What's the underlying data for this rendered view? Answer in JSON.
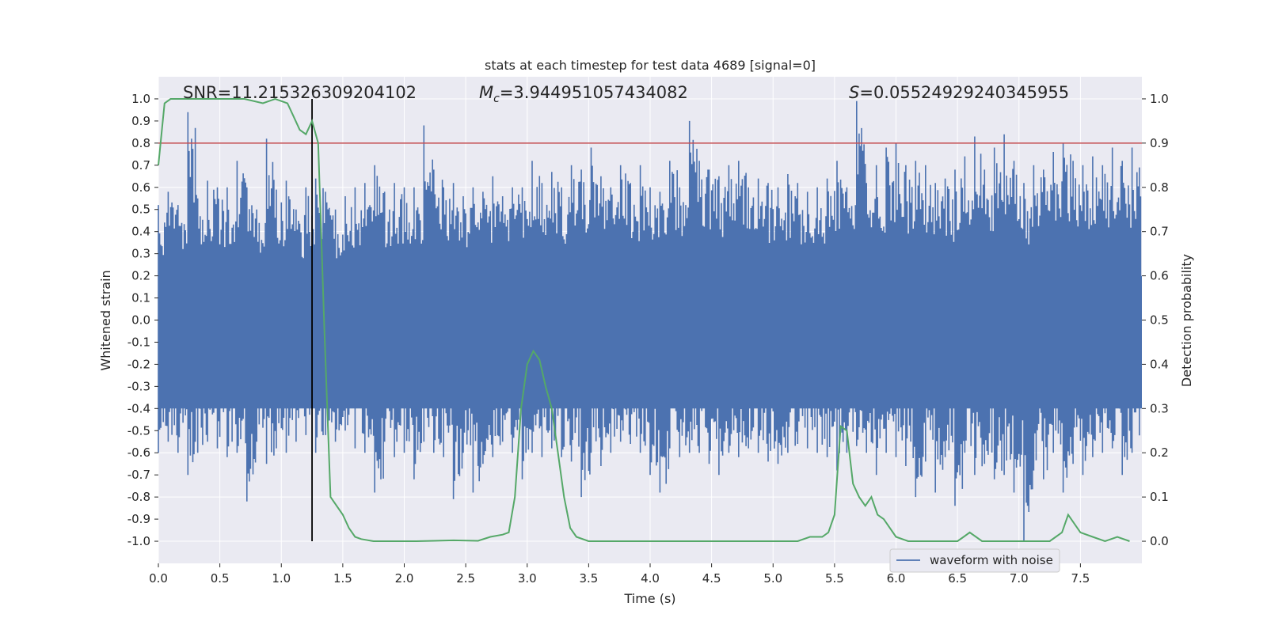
{
  "chart_data": {
    "type": "line",
    "title": "stats at each timestep for test data 4689 [signal=0]",
    "xlabel": "Time (s)",
    "ylabel": "Whitened strain",
    "y2label": "Detection probability",
    "xlim": [
      0.0,
      8.0
    ],
    "ylim": [
      -1.1,
      1.1
    ],
    "y2lim": [
      -0.05,
      1.05
    ],
    "x_ticks": [
      "0.0",
      "0.5",
      "1.0",
      "1.5",
      "2.0",
      "2.5",
      "3.0",
      "3.5",
      "4.0",
      "4.5",
      "5.0",
      "5.5",
      "6.0",
      "6.5",
      "7.0",
      "7.5"
    ],
    "y_ticks": [
      "1.0",
      "0.9",
      "0.8",
      "0.7",
      "0.6",
      "0.5",
      "0.4",
      "0.3",
      "0.2",
      "0.1",
      "0.0",
      "-0.1",
      "-0.2",
      "-0.3",
      "-0.4",
      "-0.5",
      "-0.6",
      "-0.7",
      "-0.8",
      "-0.9",
      "-1.0"
    ],
    "y2_ticks": [
      "1.0",
      "0.9",
      "0.8",
      "0.7",
      "0.6",
      "0.5",
      "0.4",
      "0.3",
      "0.2",
      "0.1",
      "0.0"
    ],
    "grid": true,
    "legend_position": "lower-right",
    "annotations": {
      "snr_label": "SNR=11.215326309204102",
      "mc_prefix": "M",
      "mc_sub": "c",
      "mc_value": "=3.944951057434082",
      "s_prefix": "S",
      "s_value": "=0.05524929240345955"
    },
    "threshold": 0.9,
    "marker_x": 1.25,
    "series": [
      {
        "name": "waveform with noise",
        "color": "#4c72b0",
        "envelope_hi": [
          0.52,
          0.58,
          0.52,
          0.94,
          0.55,
          0.63,
          0.6,
          0.6,
          0.72,
          0.6,
          0.5,
          0.82,
          0.59,
          0.63,
          0.5,
          0.6,
          0.64,
          0.58,
          0.5,
          0.56,
          0.6,
          0.62,
          0.7,
          0.58,
          0.62,
          0.6,
          0.6,
          0.88,
          0.68,
          0.6,
          0.62,
          0.56,
          0.6,
          0.58,
          0.65,
          0.56,
          0.6,
          0.6,
          0.72,
          0.62,
          0.67,
          0.6,
          0.7,
          0.68,
          0.78,
          0.65,
          0.6,
          0.7,
          0.62,
          0.7,
          0.6,
          0.58,
          0.72,
          0.6,
          0.9,
          0.72,
          0.68,
          0.65,
          0.7,
          0.72,
          0.6,
          0.64,
          0.62,
          0.6,
          0.66,
          0.62,
          0.58,
          0.6,
          0.64,
          0.72,
          0.6,
          0.99,
          0.62,
          0.7,
          0.78,
          0.8,
          0.7,
          0.72,
          0.7,
          0.62,
          0.64,
          0.68,
          0.74,
          0.83,
          0.68,
          0.78,
          0.84,
          0.72,
          0.62,
          0.7,
          0.68,
          0.76,
          0.8,
          0.72,
          0.7,
          0.74,
          0.7,
          0.78,
          0.72,
          0.78
        ],
        "envelope_lo": [
          -0.6,
          -0.55,
          -0.6,
          -0.7,
          -0.6,
          -0.55,
          -0.58,
          -0.62,
          -0.6,
          -0.82,
          -0.55,
          -0.65,
          -0.58,
          -0.6,
          -0.55,
          -0.52,
          -0.6,
          -0.52,
          -0.55,
          -0.5,
          -0.58,
          -0.6,
          -0.78,
          -0.55,
          -0.62,
          -0.6,
          -0.72,
          -0.55,
          -0.6,
          -0.62,
          -0.81,
          -0.6,
          -0.78,
          -0.65,
          -0.62,
          -0.55,
          -0.6,
          -0.72,
          -0.6,
          -0.62,
          -0.58,
          -0.62,
          -0.64,
          -0.8,
          -0.6,
          -0.66,
          -0.6,
          -0.55,
          -0.56,
          -0.6,
          -0.7,
          -0.78,
          -0.58,
          -0.62,
          -0.6,
          -0.6,
          -0.65,
          -0.7,
          -0.6,
          -0.62,
          -0.58,
          -0.6,
          -0.64,
          -0.65,
          -0.6,
          -0.56,
          -0.58,
          -0.6,
          -0.62,
          -0.68,
          -0.6,
          -0.57,
          -0.6,
          -0.7,
          -0.6,
          -0.62,
          -0.66,
          -0.8,
          -0.64,
          -0.78,
          -0.62,
          -0.84,
          -0.6,
          -0.7,
          -0.65,
          -0.72,
          -0.7,
          -0.78,
          -1.0,
          -0.68,
          -0.72,
          -0.6,
          -0.78,
          -0.65,
          -0.7,
          -0.62,
          -0.6,
          -0.58,
          -0.7,
          -0.6
        ]
      },
      {
        "name": "Detection probability",
        "color": "#55a868",
        "axis": "right",
        "x": [
          0.0,
          0.05,
          0.1,
          0.2,
          0.3,
          0.5,
          0.7,
          0.85,
          0.95,
          1.05,
          1.1,
          1.15,
          1.2,
          1.25,
          1.3,
          1.35,
          1.4,
          1.5,
          1.55,
          1.6,
          1.65,
          1.75,
          1.9,
          2.1,
          2.4,
          2.6,
          2.7,
          2.8,
          2.85,
          2.9,
          2.95,
          3.0,
          3.05,
          3.1,
          3.15,
          3.2,
          3.25,
          3.3,
          3.35,
          3.4,
          3.5,
          3.6,
          3.8,
          4.0,
          4.2,
          4.4,
          4.6,
          4.8,
          5.0,
          5.2,
          5.3,
          5.4,
          5.45,
          5.5,
          5.55,
          5.6,
          5.65,
          5.7,
          5.75,
          5.8,
          5.85,
          5.9,
          6.0,
          6.1,
          6.3,
          6.5,
          6.55,
          6.6,
          6.7,
          6.9,
          7.1,
          7.25,
          7.3,
          7.35,
          7.4,
          7.5,
          7.6,
          7.7,
          7.8,
          7.9
        ],
        "y": [
          0.85,
          0.99,
          1.0,
          1.0,
          1.0,
          1.0,
          1.0,
          0.99,
          1.0,
          0.99,
          0.96,
          0.93,
          0.92,
          0.95,
          0.9,
          0.48,
          0.1,
          0.06,
          0.03,
          0.01,
          0.005,
          0.0,
          0.0,
          0.0,
          0.002,
          0.001,
          0.01,
          0.015,
          0.02,
          0.1,
          0.3,
          0.4,
          0.43,
          0.41,
          0.35,
          0.3,
          0.2,
          0.1,
          0.03,
          0.01,
          0.0,
          0.0,
          0.0,
          0.0,
          0.0,
          0.0,
          0.0,
          0.0,
          0.0,
          0.0,
          0.01,
          0.01,
          0.02,
          0.06,
          0.26,
          0.25,
          0.13,
          0.1,
          0.08,
          0.1,
          0.06,
          0.05,
          0.01,
          0.0,
          0.0,
          0.0,
          0.01,
          0.02,
          0.0,
          0.0,
          0.0,
          0.0,
          0.01,
          0.02,
          0.06,
          0.02,
          0.01,
          0.0,
          0.01,
          0.0
        ]
      }
    ]
  }
}
